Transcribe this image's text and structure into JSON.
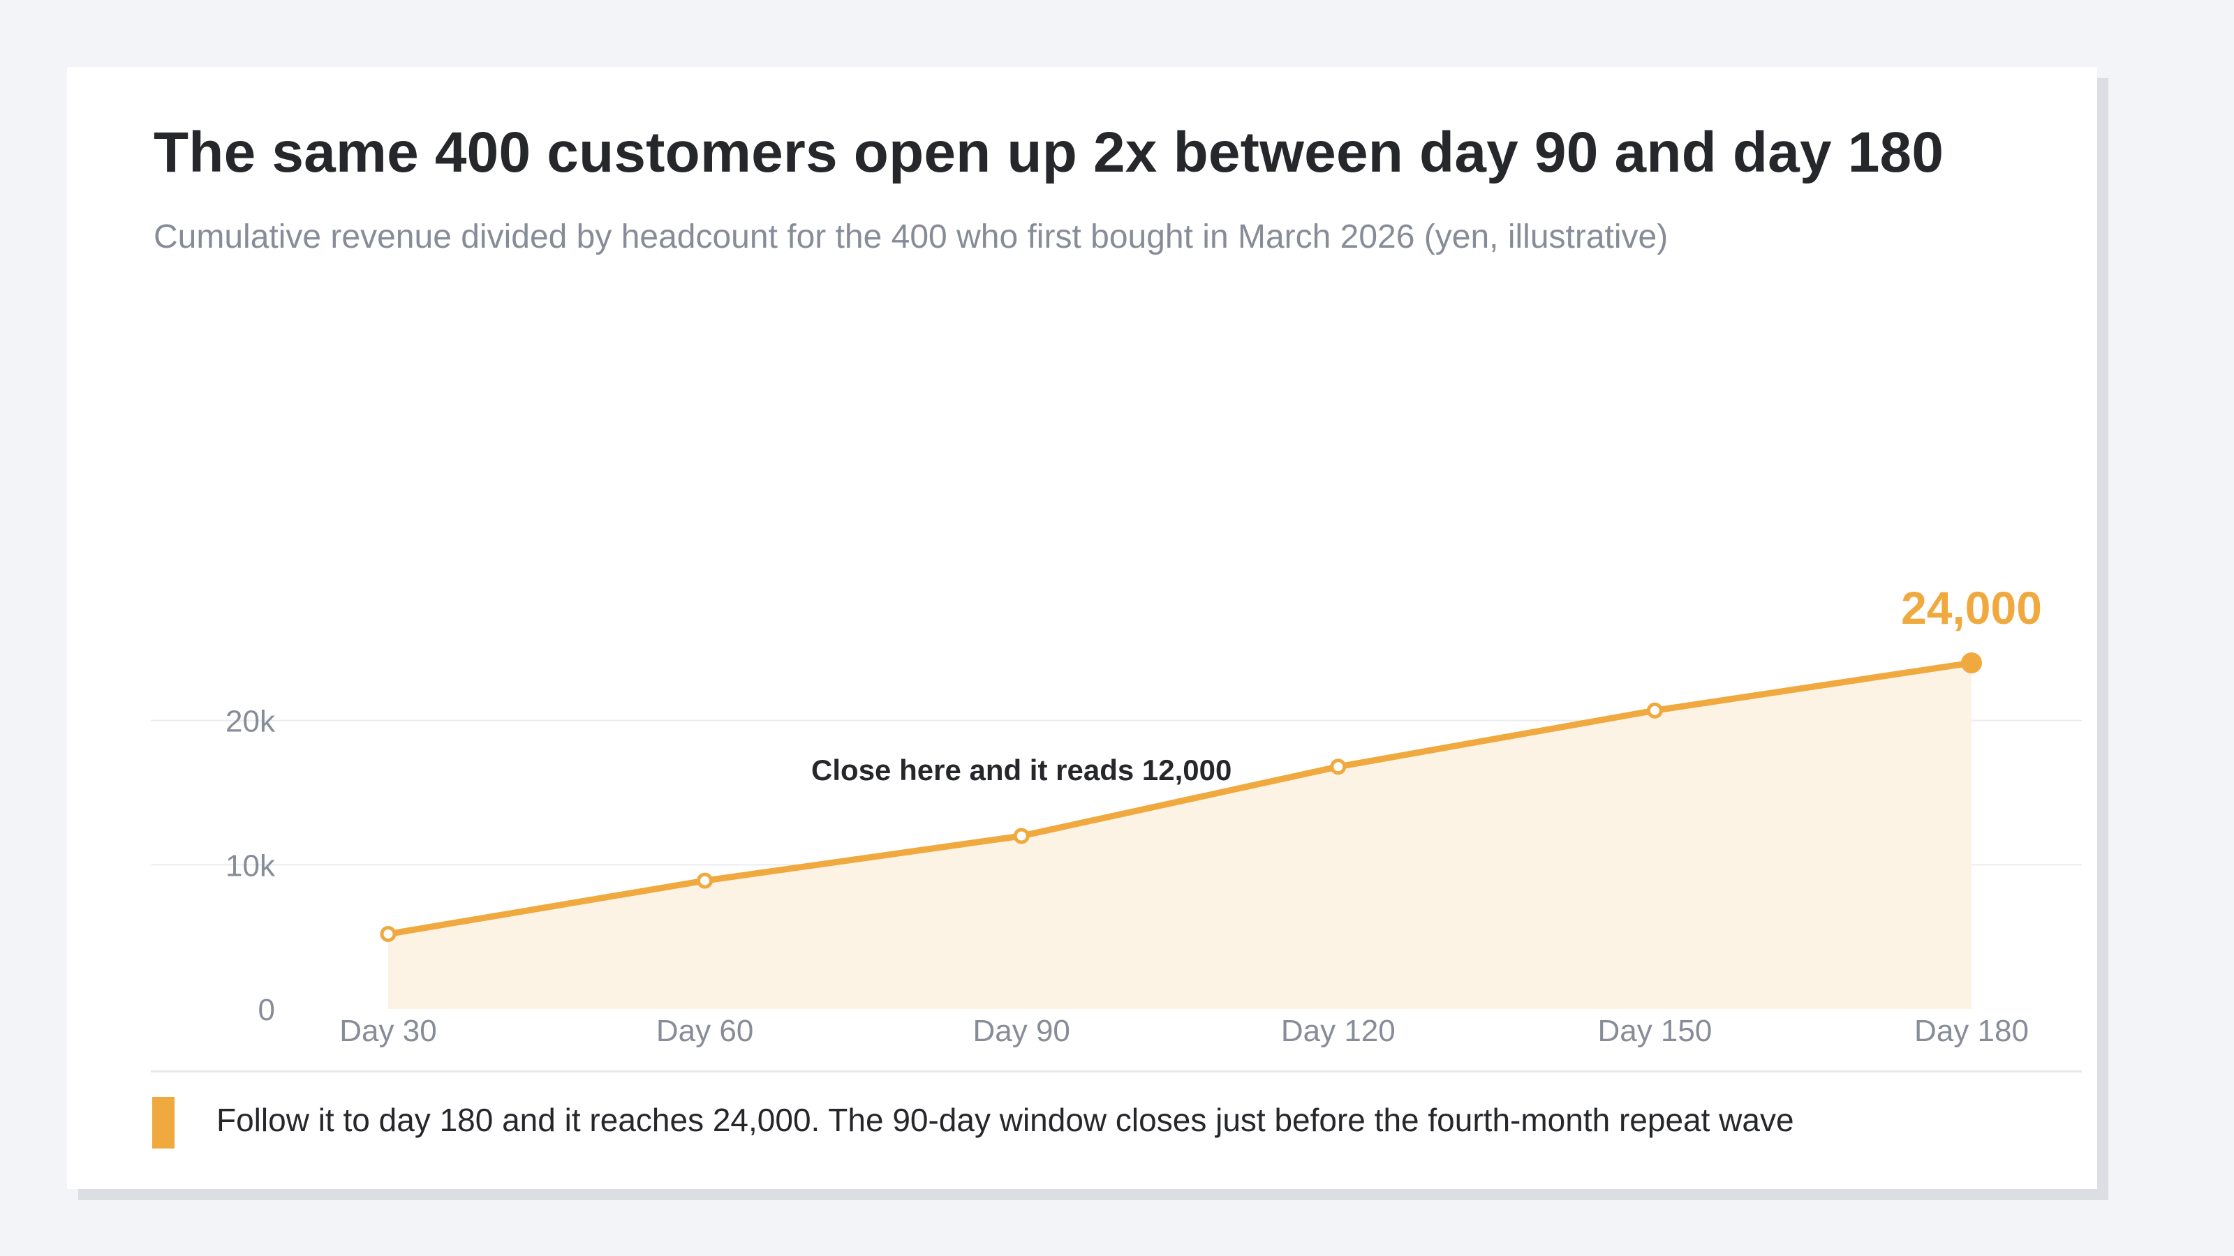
{
  "title": "The same 400 customers open up 2x between day 90 and day 180",
  "subtitle": "Cumulative revenue divided by headcount for the 400 who first bought in March 2026 (yen, illustrative)",
  "footer_note": "Follow it to day 180 and it reaches 24,000. The 90-day window closes just before the fourth-month repeat wave",
  "colors": {
    "accent": "#f0a93e",
    "area_fill": "#fdf3e4",
    "text": "#26272b",
    "muted": "#878c98",
    "grid": "#ebecef"
  },
  "chart_data": {
    "type": "area",
    "categories": [
      "Day 30",
      "Day 60",
      "Day 90",
      "Day 120",
      "Day 150",
      "Day 180"
    ],
    "values": [
      5200,
      8900,
      12000,
      16800,
      20700,
      24000
    ],
    "yticks": [
      {
        "value": 0,
        "label": "0"
      },
      {
        "value": 10000,
        "label": "10k"
      },
      {
        "value": 20000,
        "label": "20k"
      }
    ],
    "ylim": [
      0,
      24000
    ],
    "grid": true,
    "end_label": "24,000",
    "annotation": "Close here and it reads 12,000",
    "annotation_category": "Day 90"
  }
}
